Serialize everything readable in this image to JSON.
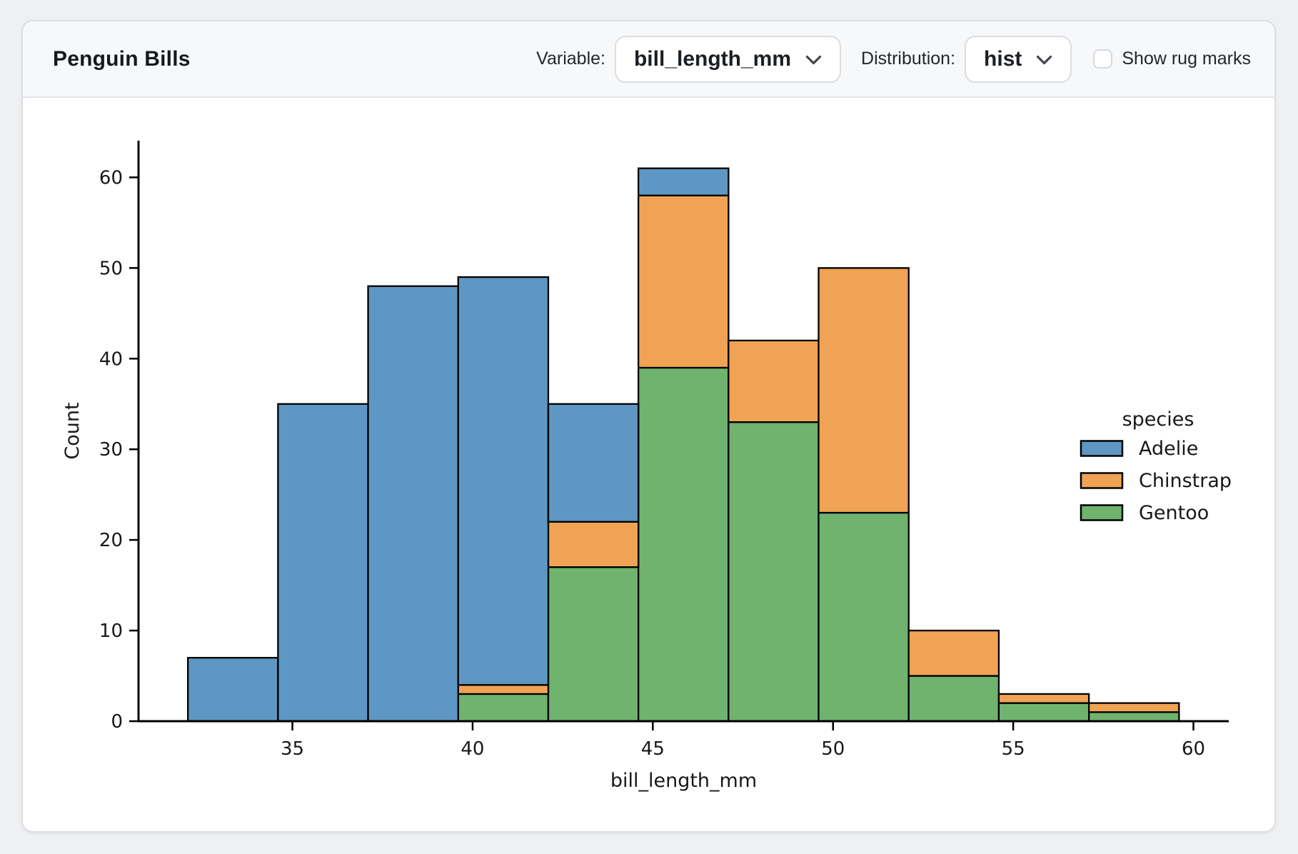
{
  "header": {
    "title": "Penguin Bills",
    "variable_label": "Variable:",
    "variable_value": "bill_length_mm",
    "distribution_label": "Distribution:",
    "distribution_value": "hist",
    "rug_label": "Show rug marks",
    "rug_checked": false
  },
  "chart_data": {
    "type": "bar",
    "subtype": "stacked_histogram",
    "xlabel": "bill_length_mm",
    "ylabel": "Count",
    "bin_edges": [
      32.1,
      34.6,
      37.1,
      39.6,
      42.1,
      44.6,
      47.1,
      49.6,
      52.1,
      54.6,
      57.1,
      59.6
    ],
    "series": [
      {
        "name": "Gentoo",
        "color": "#6FB36E",
        "values": [
          0,
          0,
          0,
          3,
          17,
          39,
          33,
          23,
          5,
          2,
          1
        ]
      },
      {
        "name": "Chinstrap",
        "color": "#F0A355",
        "values": [
          0,
          0,
          0,
          1,
          5,
          19,
          9,
          27,
          5,
          1,
          1
        ]
      },
      {
        "name": "Adelie",
        "color": "#5E97C3",
        "values": [
          7,
          35,
          48,
          45,
          13,
          3,
          0,
          0,
          0,
          0,
          0
        ]
      }
    ],
    "bin_totals": [
      7,
      35,
      48,
      49,
      35,
      61,
      42,
      50,
      10,
      3,
      2
    ],
    "xticks": [
      35,
      40,
      45,
      50,
      55,
      60
    ],
    "yticks": [
      0,
      10,
      20,
      30,
      40,
      50,
      60
    ],
    "xlim": [
      30.73,
      60.98
    ],
    "ylim": [
      0,
      64.05
    ],
    "bar_edge_color": "#000000",
    "grid": false,
    "legend": {
      "title": "species",
      "position": "right",
      "entries": [
        {
          "label": "Adelie",
          "color": "#5E97C3"
        },
        {
          "label": "Chinstrap",
          "color": "#F0A355"
        },
        {
          "label": "Gentoo",
          "color": "#6FB36E"
        }
      ]
    }
  }
}
